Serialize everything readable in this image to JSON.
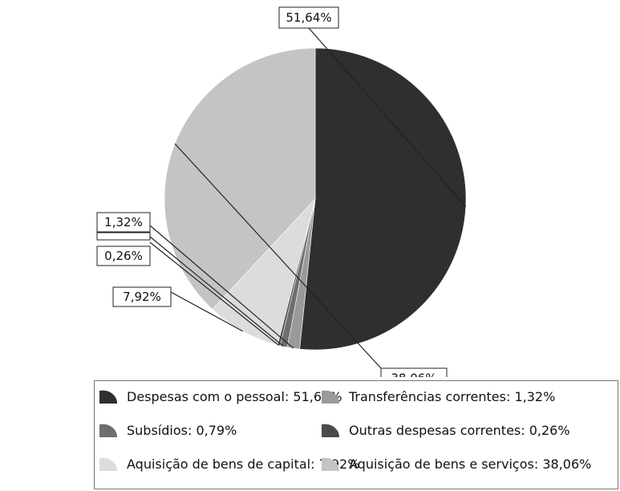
{
  "chart_data": {
    "type": "pie",
    "title": "",
    "slices": [
      {
        "label": "Despesas com o pessoal",
        "value": 51.64,
        "value_label": "51,64%",
        "color": "#2f2f2f"
      },
      {
        "label": "Transferências correntes",
        "value": 1.32,
        "value_label": "1,32%",
        "color": "#9a9a9a"
      },
      {
        "label": "Subsídios",
        "value": 0.79,
        "value_label": "0,79%",
        "color": "#6e6e6e"
      },
      {
        "label": "Outras despesas correntes",
        "value": 0.26,
        "value_label": "0,26%",
        "color": "#4a4a4a"
      },
      {
        "label": "Aquisição de bens de capital",
        "value": 7.92,
        "value_label": "7,92%",
        "color": "#dcdcdc"
      },
      {
        "label": "Aquisição  de bens e serviços",
        "value": 38.06,
        "value_label": "38,06%",
        "color": "#c4c4c4"
      }
    ],
    "legend_placement": "bottom"
  },
  "legend": [
    {
      "text": "Despesas com o pessoal: 51,64%",
      "color": "#2f2f2f"
    },
    {
      "text": "Transferências correntes: 1,32%",
      "color": "#9a9a9a"
    },
    {
      "text": "Subsídios: 0,79%",
      "color": "#6e6e6e"
    },
    {
      "text": "Outras despesas correntes: 0,26%",
      "color": "#4a4a4a"
    },
    {
      "text": "Aquisição de bens de capital: 7,92%",
      "color": "#dcdcdc"
    },
    {
      "text": "Aquisição  de bens e serviços: 38,06%",
      "color": "#c4c4c4"
    }
  ]
}
